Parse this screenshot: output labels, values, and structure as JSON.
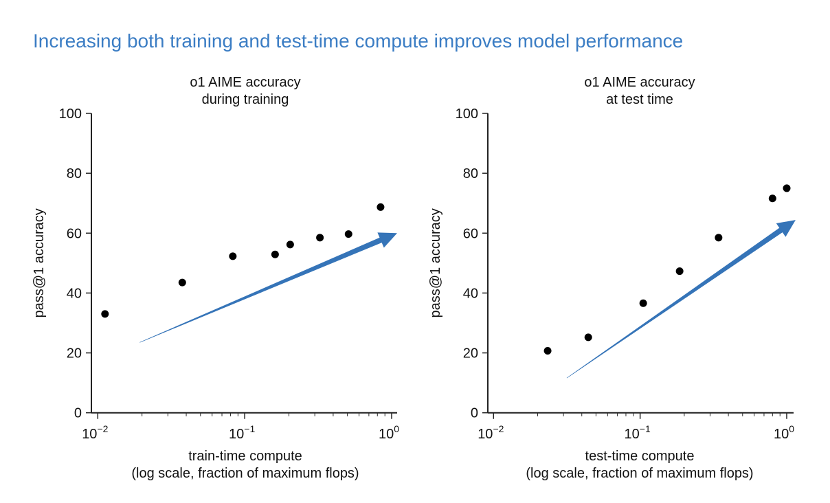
{
  "page_title": "Increasing both training and test-time compute improves model performance",
  "colors": {
    "title": "#3b7dc4",
    "arrow": "#3574b8",
    "points": "#000000",
    "axis": "#222222"
  },
  "chart_data": [
    {
      "type": "scatter",
      "title": [
        "o1 AIME accuracy",
        "during training"
      ],
      "xlabel": [
        "train-time compute",
        "(log scale, fraction of maximum flops)"
      ],
      "ylabel": "pass@1 accuracy",
      "xscale": "log",
      "xlim": [
        0.01,
        1
      ],
      "ylim": [
        0,
        100
      ],
      "xticks": [
        {
          "value": 0.01,
          "base": "10",
          "exp": "−2"
        },
        {
          "value": 0.1,
          "base": "10",
          "exp": "−1"
        },
        {
          "value": 1,
          "base": "10",
          "exp": "0"
        }
      ],
      "yticks": [
        "0",
        "20",
        "40",
        "60",
        "80",
        "100"
      ],
      "grid": false,
      "points": [
        {
          "x": 0.0112,
          "y": 33.0
        },
        {
          "x": 0.0376,
          "y": 43.5
        },
        {
          "x": 0.083,
          "y": 52.3
        },
        {
          "x": 0.161,
          "y": 52.9
        },
        {
          "x": 0.204,
          "y": 56.2
        },
        {
          "x": 0.325,
          "y": 58.5
        },
        {
          "x": 0.509,
          "y": 59.7
        },
        {
          "x": 0.841,
          "y": 68.7
        }
      ],
      "trend_arrow": {
        "from": {
          "x": 0.0193,
          "y": 23.5
        },
        "to": {
          "x": 1.09,
          "y": 60.0
        }
      }
    },
    {
      "type": "scatter",
      "title": [
        "o1 AIME accuracy",
        "at test time"
      ],
      "xlabel": [
        "test-time compute",
        "(log scale, fraction of maximum flops)"
      ],
      "ylabel": "pass@1 accuracy",
      "xscale": "log",
      "xlim": [
        0.01,
        1
      ],
      "ylim": [
        0,
        100
      ],
      "xticks": [
        {
          "value": 0.01,
          "base": "10",
          "exp": "−2"
        },
        {
          "value": 0.1,
          "base": "10",
          "exp": "−1"
        },
        {
          "value": 1,
          "base": "10",
          "exp": "0"
        }
      ],
      "yticks": [
        "0",
        "20",
        "40",
        "60",
        "80",
        "100"
      ],
      "grid": false,
      "points": [
        {
          "x": 0.0234,
          "y": 20.7
        },
        {
          "x": 0.0443,
          "y": 25.2
        },
        {
          "x": 0.105,
          "y": 36.6
        },
        {
          "x": 0.186,
          "y": 47.3
        },
        {
          "x": 0.343,
          "y": 58.5
        },
        {
          "x": 0.8,
          "y": 71.6
        },
        {
          "x": 1.0,
          "y": 75.0
        }
      ],
      "trend_arrow": {
        "from": {
          "x": 0.0316,
          "y": 11.6
        },
        "to": {
          "x": 1.15,
          "y": 64.4
        }
      }
    }
  ]
}
